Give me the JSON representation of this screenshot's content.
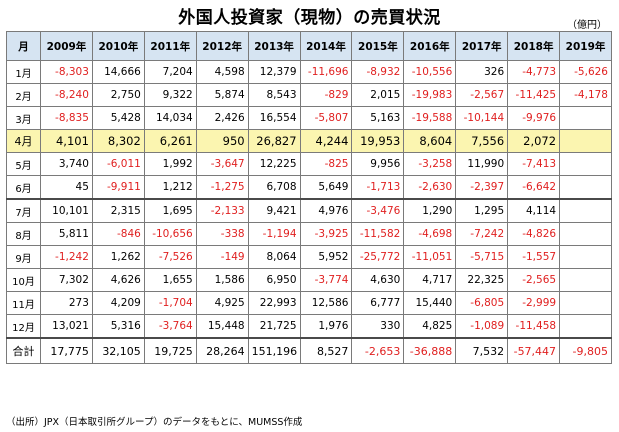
{
  "title": "外国人投資家（現物）の売買状況",
  "unit": "（億円）",
  "source": "（出所）JPX（日本取引所グループ）のデータをもとに、MUMSS作成",
  "colors": {
    "negative": "#e02020",
    "header_bg": "#d6e4f2",
    "highlight_bg": "#fbf5b0"
  },
  "chart_data": {
    "type": "table",
    "corner_label": "月",
    "columns": [
      "2009年",
      "2010年",
      "2011年",
      "2012年",
      "2013年",
      "2014年",
      "2015年",
      "2016年",
      "2017年",
      "2018年",
      "2019年"
    ],
    "highlight_row": "4月",
    "rows": [
      {
        "label": "1月",
        "values": [
          -8303,
          14666,
          7204,
          4598,
          12379,
          -11696,
          -8932,
          -10556,
          326,
          -4773,
          -5626
        ]
      },
      {
        "label": "2月",
        "values": [
          -8240,
          2750,
          9322,
          5874,
          8543,
          -829,
          2015,
          -19983,
          -2567,
          -11425,
          -4178
        ]
      },
      {
        "label": "3月",
        "values": [
          -8835,
          5428,
          14034,
          2426,
          16554,
          -5807,
          5163,
          -19588,
          -10144,
          -9976,
          null
        ]
      },
      {
        "label": "4月",
        "values": [
          4101,
          8302,
          6261,
          950,
          26827,
          4244,
          19953,
          8604,
          7556,
          2072,
          null
        ]
      },
      {
        "label": "5月",
        "values": [
          3740,
          -6011,
          1992,
          -3647,
          12225,
          -825,
          9956,
          -3258,
          11990,
          -7413,
          null
        ]
      },
      {
        "label": "6月",
        "values": [
          45,
          -9911,
          1212,
          -1275,
          6708,
          5649,
          -1713,
          -2630,
          -2397,
          -6642,
          null
        ]
      },
      {
        "label": "7月",
        "values": [
          10101,
          2315,
          1695,
          -2133,
          9421,
          4976,
          -3476,
          1290,
          1295,
          4114,
          null
        ]
      },
      {
        "label": "8月",
        "values": [
          5811,
          -846,
          -10656,
          -338,
          -1194,
          -3925,
          -11582,
          -4698,
          -7242,
          -4826,
          null
        ]
      },
      {
        "label": "9月",
        "values": [
          -1242,
          1262,
          -7526,
          -149,
          8064,
          5952,
          -25772,
          -11051,
          -5715,
          -1557,
          null
        ]
      },
      {
        "label": "10月",
        "values": [
          7302,
          4626,
          1655,
          1586,
          6950,
          -3774,
          4630,
          4717,
          22325,
          -2565,
          null
        ]
      },
      {
        "label": "11月",
        "values": [
          273,
          4209,
          -1704,
          4925,
          22993,
          12586,
          6777,
          15440,
          -6805,
          -2999,
          null
        ]
      },
      {
        "label": "12月",
        "values": [
          13021,
          5316,
          -3764,
          15448,
          21725,
          1976,
          330,
          4825,
          -1089,
          -11458,
          null
        ]
      },
      {
        "label": "合計",
        "values": [
          17775,
          32105,
          19725,
          28264,
          151196,
          8527,
          -2653,
          -36888,
          7532,
          -57447,
          -9805
        ]
      }
    ]
  }
}
